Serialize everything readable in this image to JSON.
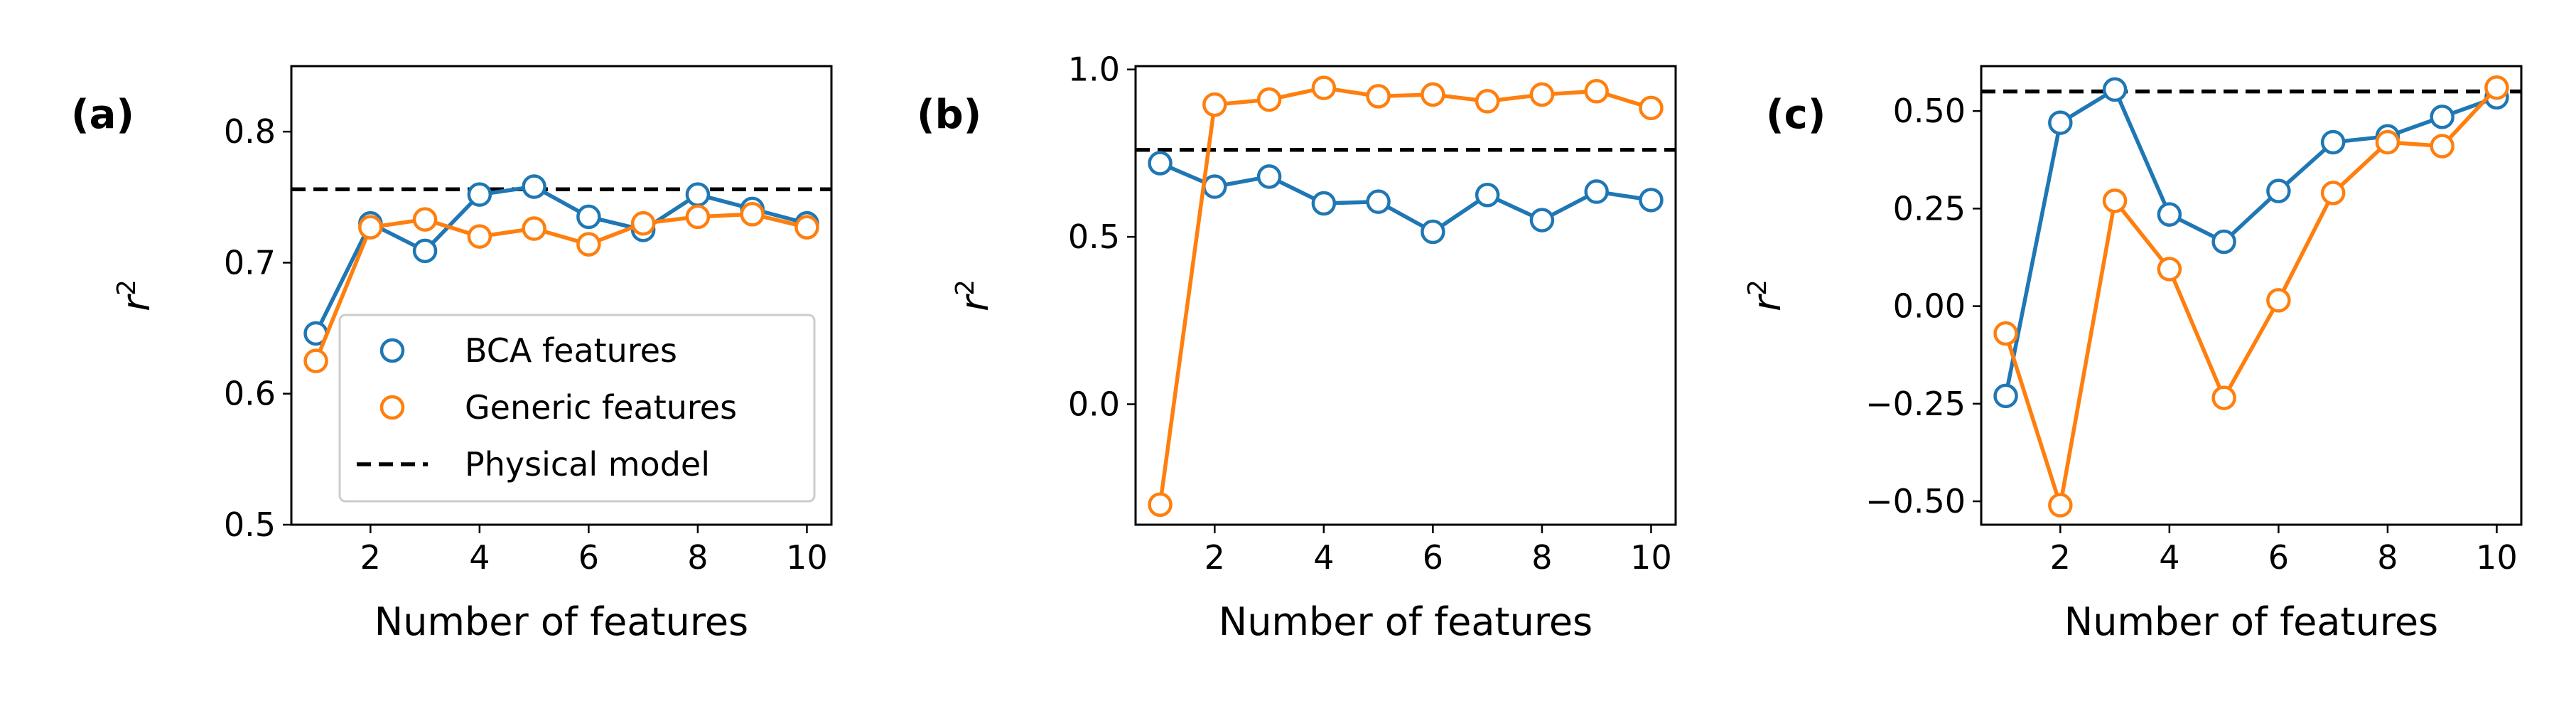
{
  "colors": {
    "bca": "#1f77b4",
    "generic": "#ff7f0e",
    "physical": "#000000",
    "legend_border": "#cccccc"
  },
  "legend": {
    "bca": "BCA features",
    "generic": "Generic features",
    "physical": "Physical model"
  },
  "chart_data": [
    {
      "type": "line",
      "panel_label": "(a)",
      "xlabel": "Number of features",
      "ylabel": "r2",
      "xlim": [
        0.55,
        10.45
      ],
      "ylim": [
        0.5,
        0.85
      ],
      "xticks": [
        2,
        4,
        6,
        8,
        10
      ],
      "yticks": [
        0.5,
        0.6,
        0.7,
        0.8
      ],
      "ytick_labels": [
        "0.5",
        "0.6",
        "0.7",
        "0.8"
      ],
      "legend_location": "lower right",
      "series": [
        {
          "name": "BCA features",
          "key": "bca",
          "x": [
            1,
            2,
            3,
            4,
            5,
            6,
            7,
            8,
            9,
            10
          ],
          "y": [
            0.646,
            0.73,
            0.709,
            0.752,
            0.758,
            0.735,
            0.725,
            0.752,
            0.741,
            0.73
          ]
        },
        {
          "name": "Generic features",
          "key": "generic",
          "x": [
            1,
            2,
            3,
            4,
            5,
            6,
            7,
            8,
            9,
            10
          ],
          "y": [
            0.625,
            0.727,
            0.733,
            0.72,
            0.726,
            0.714,
            0.73,
            0.735,
            0.737,
            0.727
          ]
        }
      ],
      "reference_line": {
        "name": "Physical model",
        "y": 0.756
      }
    },
    {
      "type": "line",
      "panel_label": "(b)",
      "xlabel": "Number of features",
      "ylabel": "r2",
      "xlim": [
        0.55,
        10.45
      ],
      "ylim": [
        -0.36,
        1.01
      ],
      "xticks": [
        2,
        4,
        6,
        8,
        10
      ],
      "yticks": [
        0.0,
        0.5,
        1.0
      ],
      "ytick_labels": [
        "0.0",
        "0.5",
        "1.0"
      ],
      "series": [
        {
          "name": "BCA features",
          "key": "bca",
          "x": [
            1,
            2,
            3,
            4,
            5,
            6,
            7,
            8,
            9,
            10
          ],
          "y": [
            0.72,
            0.65,
            0.68,
            0.6,
            0.605,
            0.515,
            0.625,
            0.55,
            0.635,
            0.61
          ]
        },
        {
          "name": "Generic features",
          "key": "generic",
          "x": [
            1,
            2,
            3,
            4,
            5,
            6,
            7,
            8,
            9,
            10
          ],
          "y": [
            -0.3,
            0.895,
            0.91,
            0.945,
            0.92,
            0.925,
            0.905,
            0.925,
            0.935,
            0.885
          ]
        }
      ],
      "reference_line": {
        "name": "Physical model",
        "y": 0.76
      }
    },
    {
      "type": "line",
      "panel_label": "(c)",
      "xlabel": "Number of features",
      "ylabel": "r2",
      "xlim": [
        0.55,
        10.45
      ],
      "ylim": [
        -0.56,
        0.615
      ],
      "xticks": [
        2,
        4,
        6,
        8,
        10
      ],
      "yticks": [
        -0.5,
        -0.25,
        0.0,
        0.25,
        0.5
      ],
      "ytick_labels": [
        "−0.50",
        "−0.25",
        "0.00",
        "0.25",
        "0.50"
      ],
      "series": [
        {
          "name": "BCA features",
          "key": "bca",
          "x": [
            1,
            2,
            3,
            4,
            5,
            6,
            7,
            8,
            9,
            10
          ],
          "y": [
            -0.23,
            0.47,
            0.555,
            0.235,
            0.165,
            0.295,
            0.42,
            0.435,
            0.485,
            0.535
          ]
        },
        {
          "name": "Generic features",
          "key": "generic",
          "x": [
            1,
            2,
            3,
            4,
            5,
            6,
            7,
            8,
            9,
            10
          ],
          "y": [
            -0.07,
            -0.51,
            0.27,
            0.095,
            -0.235,
            0.015,
            0.29,
            0.42,
            0.41,
            0.56
          ]
        }
      ],
      "reference_line": {
        "name": "Physical model",
        "y": 0.55
      }
    }
  ]
}
